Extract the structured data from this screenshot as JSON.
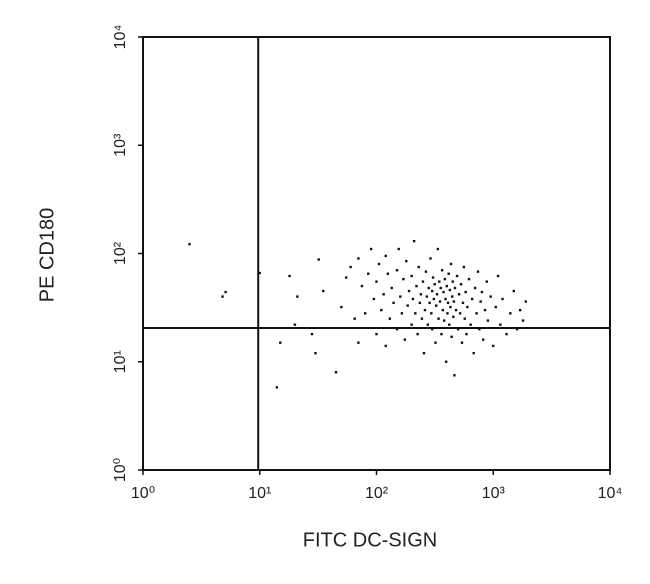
{
  "chart_data": {
    "type": "scatter",
    "x_label": "FITC DC-SIGN",
    "y_label": "PE CD180",
    "xscale": "log",
    "yscale": "log",
    "xlim": [
      1,
      10000
    ],
    "ylim": [
      1,
      10000
    ],
    "xticks": [
      {
        "value": 1,
        "label": "10⁰"
      },
      {
        "value": 10,
        "label": "10¹"
      },
      {
        "value": 100,
        "label": "10²"
      },
      {
        "value": 1000,
        "label": "10³"
      },
      {
        "value": 10000,
        "label": "10⁴"
      }
    ],
    "yticks": [
      {
        "value": 1,
        "label": "10⁰"
      },
      {
        "value": 10,
        "label": "10¹"
      },
      {
        "value": 100,
        "label": "10²"
      },
      {
        "value": 1000,
        "label": "10³"
      },
      {
        "value": 10000,
        "label": "10⁴"
      }
    ],
    "gates": {
      "x": 9.7,
      "y": 20.5
    },
    "color": "#111111",
    "x": [
      2.5,
      4.8,
      5.1,
      10,
      14,
      15,
      18,
      20,
      21,
      28,
      30,
      32,
      35,
      45,
      50,
      55,
      60,
      65,
      70,
      70,
      75,
      80,
      85,
      90,
      95,
      100,
      100,
      105,
      110,
      115,
      120,
      120,
      125,
      130,
      135,
      140,
      150,
      150,
      155,
      160,
      165,
      170,
      175,
      180,
      185,
      190,
      200,
      200,
      205,
      210,
      215,
      220,
      225,
      230,
      235,
      240,
      245,
      250,
      255,
      260,
      265,
      270,
      275,
      280,
      285,
      290,
      295,
      300,
      300,
      305,
      310,
      315,
      320,
      325,
      330,
      335,
      340,
      345,
      350,
      355,
      360,
      365,
      370,
      375,
      380,
      385,
      390,
      395,
      400,
      405,
      410,
      415,
      420,
      425,
      430,
      435,
      440,
      445,
      450,
      455,
      460,
      465,
      470,
      480,
      490,
      500,
      510,
      520,
      530,
      540,
      550,
      560,
      570,
      580,
      590,
      600,
      620,
      640,
      660,
      680,
      700,
      720,
      740,
      760,
      780,
      800,
      820,
      850,
      880,
      900,
      950,
      1000,
      1050,
      1100,
      1150,
      1200,
      1300,
      1400,
      1500,
      1600,
      1700,
      1800,
      1900
    ],
    "values": [
      122,
      40,
      44,
      66,
      5.8,
      15,
      62,
      22,
      40,
      18,
      12,
      88,
      45,
      8,
      32,
      60,
      75,
      25,
      15,
      90,
      50,
      28,
      65,
      110,
      38,
      18,
      55,
      80,
      30,
      42,
      14,
      95,
      65,
      25,
      48,
      35,
      20,
      70,
      110,
      40,
      28,
      58,
      16,
      85,
      33,
      45,
      22,
      62,
      38,
      130,
      28,
      50,
      18,
      75,
      35,
      42,
      25,
      55,
      12,
      30,
      68,
      40,
      22,
      48,
      35,
      90,
      28,
      45,
      20,
      60,
      38,
      52,
      15,
      33,
      42,
      110,
      25,
      55,
      36,
      48,
      18,
      70,
      30,
      44,
      24,
      58,
      38,
      10,
      50,
      28,
      35,
      65,
      22,
      46,
      32,
      80,
      17,
      40,
      55,
      26,
      36,
      7.5,
      48,
      30,
      62,
      20,
      42,
      28,
      52,
      15,
      35,
      75,
      25,
      44,
      18,
      32,
      58,
      22,
      38,
      12,
      48,
      28,
      68,
      20,
      36,
      44,
      16,
      30,
      55,
      24,
      40,
      14,
      32,
      62,
      22,
      38,
      18,
      28,
      45,
      20,
      30,
      24,
      36
    ]
  }
}
